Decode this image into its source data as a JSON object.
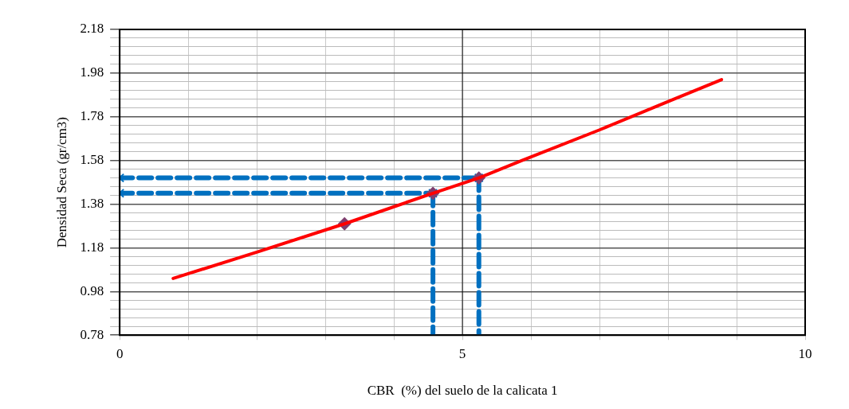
{
  "chart_data": {
    "type": "line",
    "xlabel": "CBR  (%) del suelo de la calicata 1",
    "ylabel": "Densidad Seca (gr/cm3)",
    "xlim": [
      0,
      10
    ],
    "ylim": [
      0.78,
      2.18
    ],
    "xticks": [
      0,
      {
        "value": 1,
        "label": null
      },
      {
        "value": 2,
        "label": null
      },
      {
        "value": 3,
        "label": null
      },
      {
        "value": 4,
        "label": null
      },
      5,
      {
        "value": 6,
        "label": null
      },
      {
        "value": 7,
        "label": null
      },
      {
        "value": 8,
        "label": null
      },
      {
        "value": 9,
        "label": null
      },
      10
    ],
    "yticks": [
      0.78,
      {
        "value": 0.82,
        "label": null
      },
      {
        "value": 0.86,
        "label": null
      },
      {
        "value": 0.9,
        "label": null
      },
      {
        "value": 0.94,
        "label": null
      },
      0.98,
      {
        "value": 1.02,
        "label": null
      },
      {
        "value": 1.06,
        "label": null
      },
      {
        "value": 1.1,
        "label": null
      },
      {
        "value": 1.14,
        "label": null
      },
      1.18,
      {
        "value": 1.22,
        "label": null
      },
      {
        "value": 1.26,
        "label": null
      },
      {
        "value": 1.3,
        "label": null
      },
      {
        "value": 1.34,
        "label": null
      },
      1.38,
      {
        "value": 1.42,
        "label": null
      },
      {
        "value": 1.46,
        "label": null
      },
      {
        "value": 1.5,
        "label": null
      },
      {
        "value": 1.54,
        "label": null
      },
      1.58,
      {
        "value": 1.62,
        "label": null
      },
      {
        "value": 1.66,
        "label": null
      },
      {
        "value": 1.7,
        "label": null
      },
      {
        "value": 1.74,
        "label": null
      },
      1.78,
      {
        "value": 1.82,
        "label": null
      },
      {
        "value": 1.86,
        "label": null
      },
      {
        "value": 1.9,
        "label": null
      },
      {
        "value": 1.94,
        "label": null
      },
      1.98,
      {
        "value": 2.02,
        "label": null
      },
      {
        "value": 2.06,
        "label": null
      },
      {
        "value": 2.1,
        "label": null
      },
      {
        "value": 2.14,
        "label": null
      },
      2.18
    ],
    "grid": true,
    "legend": false,
    "ref_lines": [
      {
        "axis": "x",
        "value": 5,
        "color": "#000000",
        "line_style": "solid"
      }
    ],
    "series": [
      {
        "type": "line",
        "color": "#ff0000",
        "marker": "none",
        "line_style": "solid",
        "x": [
          0.78,
          2,
          3.28,
          4.57,
          5.24,
          5.87,
          7,
          8,
          8.78
        ],
        "values": [
          1.04,
          1.16,
          1.29,
          1.43,
          1.5,
          1.58,
          1.72,
          1.85,
          1.95
        ]
      },
      {
        "type": "scatter",
        "color": "#7f3f6f",
        "marker": "diamond",
        "x": [
          3.28,
          4.57,
          5.24
        ],
        "values": [
          1.29,
          1.43,
          1.5
        ]
      },
      {
        "type": "line",
        "color": "#0070c0",
        "marker": "cross",
        "line_style": "dashed",
        "x": [
          0,
          5.24
        ],
        "values": [
          1.5,
          1.5
        ]
      },
      {
        "type": "line",
        "color": "#0070c0",
        "marker": "cross",
        "line_style": "dashed",
        "x": [
          0,
          4.57
        ],
        "values": [
          1.43,
          1.43
        ]
      },
      {
        "type": "line",
        "color": "#0070c0",
        "marker": "none",
        "line_style": "dashed",
        "x": [
          5.24,
          5.24
        ],
        "values": [
          1.5,
          0.78
        ]
      },
      {
        "type": "line",
        "color": "#0070c0",
        "marker": "none",
        "line_style": "dashed",
        "x": [
          4.57,
          4.57
        ],
        "values": [
          1.43,
          0.78
        ]
      }
    ]
  }
}
